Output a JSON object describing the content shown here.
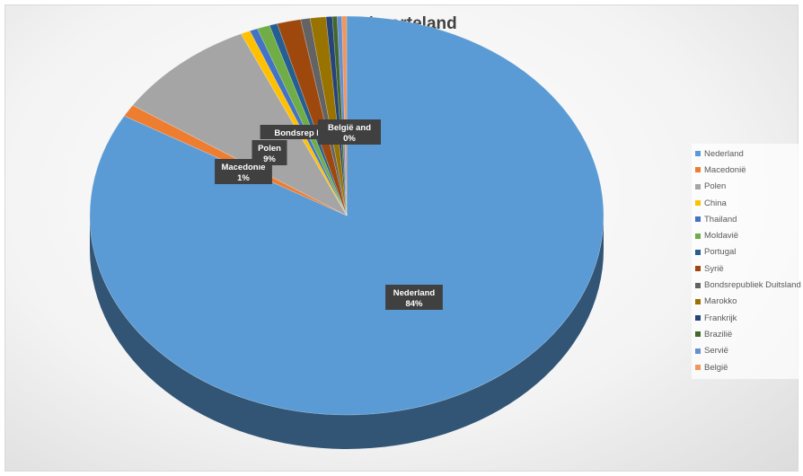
{
  "chart_data": {
    "type": "pie",
    "title": "Geboorteland",
    "categories": [
      "Nederland",
      "Macedonië",
      "Polen",
      "China",
      "Thailand",
      "Moldavië",
      "Portugal",
      "Syrië",
      "Bondsrepubliek Duitsland",
      "Marokko",
      "Frankrijk",
      "Brazilië",
      "Servië",
      "België"
    ],
    "values": [
      84,
      1,
      9,
      0.6,
      0.5,
      0.8,
      0.5,
      1.5,
      0.6,
      1,
      0.4,
      0.3,
      0.3,
      0.3
    ],
    "colors": [
      "#5b9bd5",
      "#ed7d31",
      "#a5a5a5",
      "#ffc000",
      "#4472c4",
      "#70ad47",
      "#255e91",
      "#9e480e",
      "#636363",
      "#997300",
      "#264478",
      "#43682b",
      "#698ed0",
      "#f1975a"
    ],
    "data_labels": [
      {
        "category": "Nederland",
        "text": "Nederland",
        "pct": "84%"
      },
      {
        "category": "Macedonië",
        "text": "Macedonië",
        "pct": "1%"
      },
      {
        "category": "Polen",
        "text": "Polen",
        "pct": "9%"
      },
      {
        "category": "Bondsrepubliek Duitsland",
        "text": "Bondsrep I F I",
        "pct": ""
      },
      {
        "category": "België",
        "text": "België and",
        "pct": "0%"
      }
    ],
    "legend_position": "right",
    "style": "3d"
  }
}
